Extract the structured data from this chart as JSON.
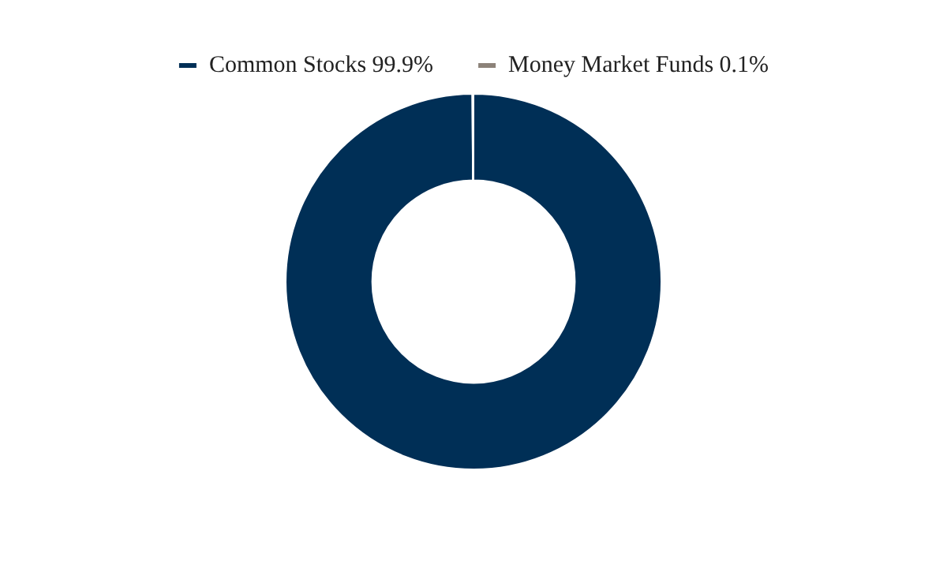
{
  "chart_data": {
    "type": "donut",
    "categories": [
      "Common Stocks 99.9%",
      "Money Market Funds 0.1%"
    ],
    "values": [
      99.9,
      0.1
    ],
    "colors": [
      "#002f56",
      "#8c8279"
    ],
    "legend": "top"
  }
}
